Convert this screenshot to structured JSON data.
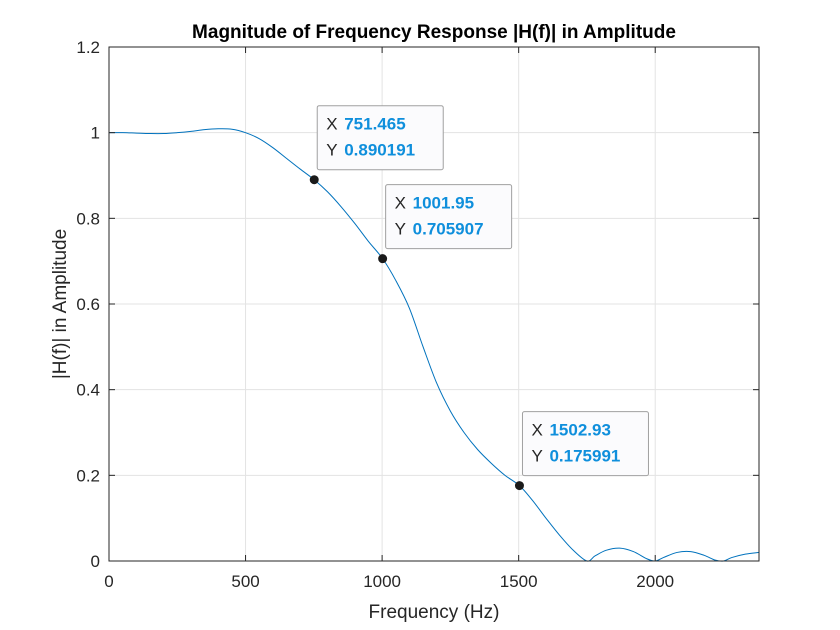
{
  "chart_data": {
    "type": "line",
    "title": "Magnitude of Frequency Response |H(f)| in Amplitude",
    "xlabel": "Frequency (Hz)",
    "ylabel": "|H(f)| in Amplitude",
    "xlim": [
      0,
      2380
    ],
    "ylim": [
      0,
      1.2
    ],
    "xticks": [
      "0",
      "500",
      "1000",
      "1500",
      "2000"
    ],
    "yticks": [
      "0",
      "0.2",
      "0.4",
      "0.6",
      "0.8",
      "1",
      "1.2"
    ],
    "grid": true,
    "line_color": "#0072bd",
    "series": [
      {
        "x": [
          0,
          50,
          100,
          150,
          200,
          250,
          300,
          350,
          400,
          450,
          500,
          550,
          600,
          650,
          700,
          751.465,
          800,
          850,
          900,
          950,
          1001.95,
          1050,
          1100,
          1150,
          1200,
          1250,
          1300,
          1350,
          1400,
          1450,
          1502.93,
          1550,
          1600,
          1650,
          1700,
          1750,
          1780,
          1820,
          1870,
          1920,
          1970,
          2000,
          2030,
          2080,
          2130,
          2180,
          2220,
          2250,
          2280,
          2330,
          2380
        ],
        "y": [
          1.0,
          1.0,
          0.999,
          0.998,
          0.998,
          1.0,
          1.003,
          1.007,
          1.009,
          1.008,
          1.0,
          0.986,
          0.965,
          0.94,
          0.915,
          0.890191,
          0.862,
          0.827,
          0.788,
          0.746,
          0.705907,
          0.655,
          0.59,
          0.5,
          0.415,
          0.35,
          0.3,
          0.26,
          0.228,
          0.2,
          0.175991,
          0.142,
          0.1,
          0.06,
          0.025,
          0.0,
          0.012,
          0.025,
          0.03,
          0.022,
          0.005,
          0.0,
          0.008,
          0.02,
          0.022,
          0.013,
          0.002,
          0.0,
          0.008,
          0.016,
          0.02
        ]
      }
    ],
    "datatips": [
      {
        "x": "751.465",
        "y": "0.890191",
        "xv": 751.465,
        "yv": 0.890191
      },
      {
        "x": "1001.95",
        "y": "0.705907",
        "xv": 1001.95,
        "yv": 0.705907
      },
      {
        "x": "1502.93",
        "y": "0.175991",
        "xv": 1502.93,
        "yv": 0.175991
      }
    ],
    "datatip_key_x": "X",
    "datatip_key_y": "Y"
  }
}
